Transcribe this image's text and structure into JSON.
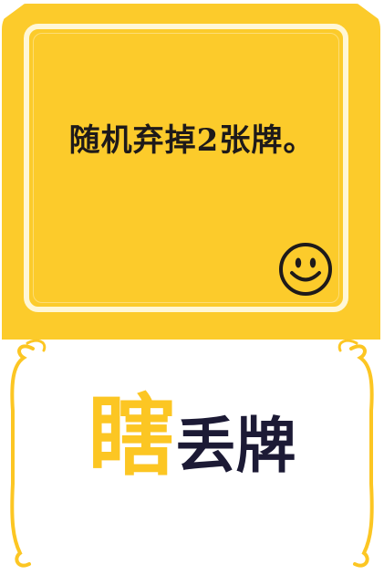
{
  "card": {
    "effect_text": "随机弃掉2张牌。",
    "title_highlight": "瞎",
    "title_rest": "丢牌",
    "icon": "smiley-face-icon",
    "colors": {
      "panel_yellow": "#fccb2b",
      "frame_light": "#fff7d6",
      "title_yellow": "#fcc623",
      "title_dark": "#1c1a35",
      "text_dark": "#1e1a1a"
    }
  }
}
